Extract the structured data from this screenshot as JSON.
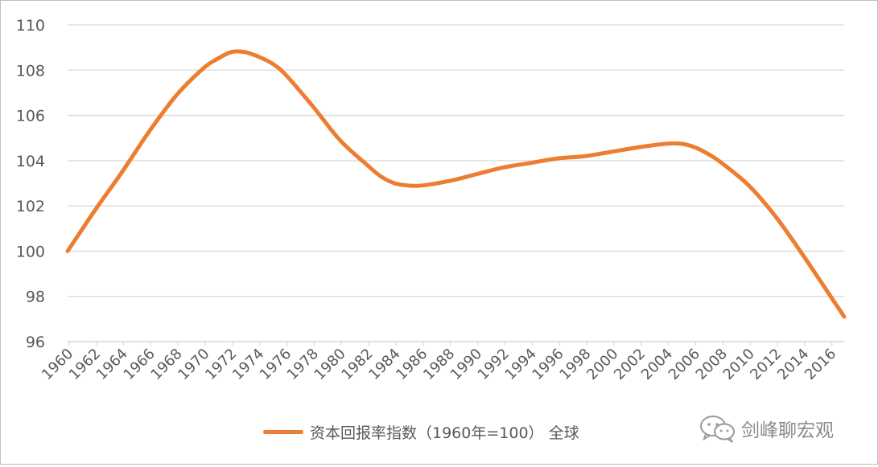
{
  "chart_data": {
    "type": "line",
    "ylim": [
      96,
      110
    ],
    "yticks": [
      "96",
      "98",
      "100",
      "102",
      "104",
      "106",
      "108",
      "110"
    ],
    "xticks": [
      "1960",
      "1962",
      "1964",
      "1966",
      "1968",
      "1970",
      "1972",
      "1974",
      "1976",
      "1978",
      "1980",
      "1982",
      "1984",
      "1986",
      "1988",
      "1990",
      "1992",
      "1994",
      "1996",
      "1998",
      "2000",
      "2002",
      "2004",
      "2006",
      "2008",
      "2010",
      "2012",
      "2014",
      "2016"
    ],
    "x": [
      1960,
      1962,
      1964,
      1966,
      1968,
      1970,
      1971,
      1972,
      1973,
      1974,
      1975,
      1976,
      1978,
      1980,
      1982,
      1983,
      1984,
      1985,
      1986,
      1988,
      1990,
      1992,
      1994,
      1996,
      1998,
      2000,
      2002,
      2004,
      2005,
      2006,
      2007,
      2008,
      2010,
      2012,
      2014,
      2016,
      2017
    ],
    "series": [
      {
        "name": "资本回报率指数（1960年=100）全球",
        "color": "#ed7d31",
        "values": [
          100.0,
          101.8,
          103.5,
          105.3,
          106.9,
          108.1,
          108.5,
          108.8,
          108.8,
          108.6,
          108.3,
          107.8,
          106.4,
          104.9,
          103.8,
          103.3,
          103.0,
          102.9,
          102.9,
          103.1,
          103.4,
          103.7,
          103.9,
          104.1,
          104.2,
          104.4,
          104.6,
          104.75,
          104.75,
          104.6,
          104.3,
          103.9,
          102.9,
          101.5,
          99.8,
          98.0,
          97.1
        ]
      }
    ],
    "legend_position": "bottom",
    "grid": true,
    "gridline_color": "#d9d9d9"
  },
  "legend": {
    "label": "资本回报率指数（1960年=100） 全球"
  },
  "watermark": {
    "text": "剑峰聊宏观",
    "icon": "wechat-icon"
  }
}
